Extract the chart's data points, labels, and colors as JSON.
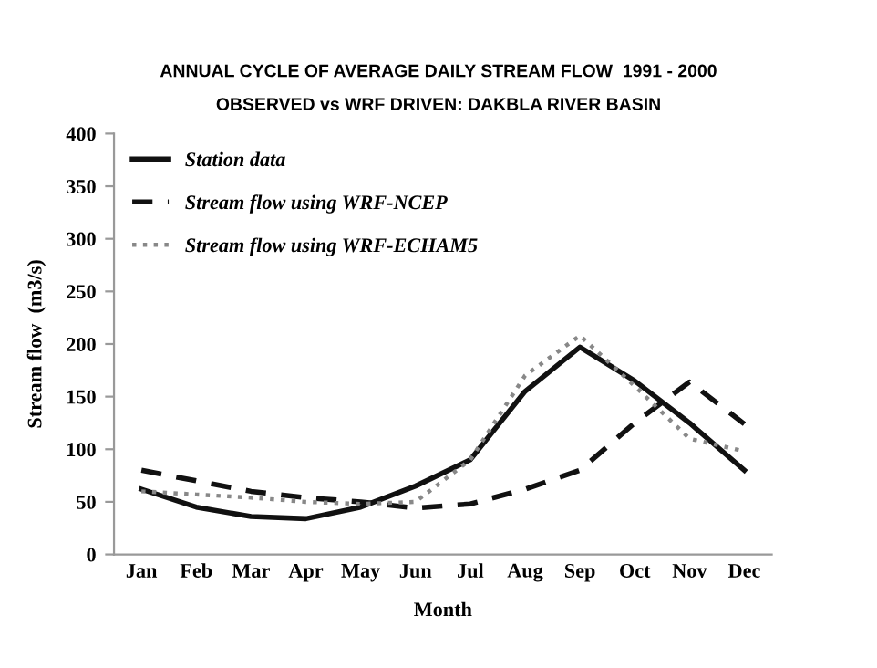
{
  "chart_data": {
    "type": "line",
    "title": "ANNUAL CYCLE OF AVERAGE DAILY STREAM FLOW  1991 - 2000",
    "subtitle": "OBSERVED vs WRF DRIVEN: DAKBLA RIVER BASIN",
    "xlabel": "Month",
    "ylabel": "Stream flow  (m3/s)",
    "categories": [
      "Jan",
      "Feb",
      "Mar",
      "Apr",
      "May",
      "Jun",
      "Jul",
      "Aug",
      "Sep",
      "Oct",
      "Nov",
      "Dec"
    ],
    "series": [
      {
        "name": "Station data",
        "color": "#111111",
        "line_style": "solid",
        "values": [
          62,
          45,
          36,
          34,
          45,
          65,
          90,
          155,
          197,
          165,
          125,
          80
        ]
      },
      {
        "name": "Stream flow using WRF-NCEP",
        "color": "#111111",
        "line_style": "dashed",
        "values": [
          80,
          70,
          60,
          54,
          50,
          44,
          48,
          62,
          80,
          125,
          164,
          124
        ]
      },
      {
        "name": "Stream flow using WRF-ECHAM5",
        "color": "#888888",
        "line_style": "dotted",
        "values": [
          60,
          57,
          54,
          50,
          48,
          50,
          90,
          170,
          208,
          160,
          110,
          98
        ]
      }
    ],
    "ylim": [
      0,
      400
    ],
    "yticks": [
      0,
      50,
      100,
      150,
      200,
      250,
      300,
      350,
      400
    ],
    "grid": false,
    "legend": "top left"
  }
}
